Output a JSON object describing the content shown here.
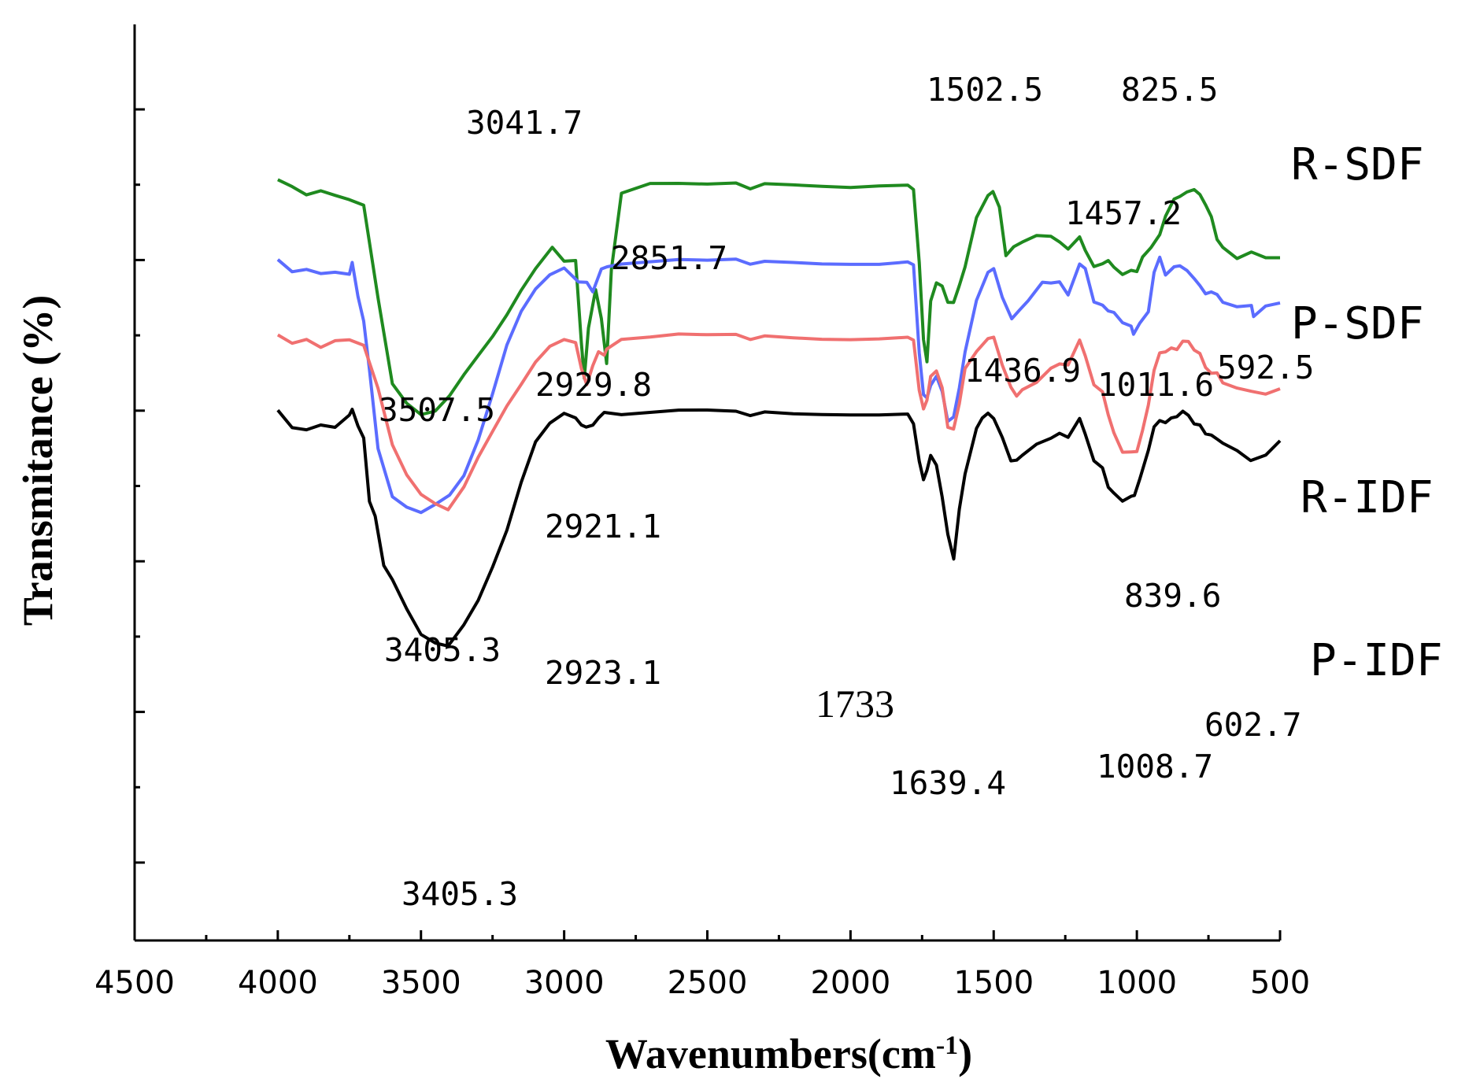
{
  "chart_data": {
    "type": "line",
    "title": "",
    "xlabel": "Wavenumbers",
    "xlabel_unit_prefix": "(cm",
    "xlabel_unit_exp": "-1",
    "xlabel_unit_suffix": ")",
    "ylabel": "Transmitance (%)",
    "xlim": [
      4500,
      500
    ],
    "x_ticks": [
      4500,
      4000,
      3500,
      3000,
      2500,
      2000,
      1500,
      1000,
      500
    ],
    "x_tick_labels": [
      "4500",
      "4000",
      "3500",
      "3000",
      "2500",
      "2000",
      "1500",
      "1000",
      "500"
    ],
    "y_ticks_unlabeled": 10,
    "ylim": [
      0,
      100
    ],
    "series": [
      {
        "name": "R-SDF",
        "color": "#1f8a1f",
        "x": [
          4000,
          3950,
          3900,
          3850,
          3800,
          3750,
          3700,
          3650,
          3600,
          3550,
          3500,
          3450,
          3400,
          3350,
          3300,
          3250,
          3200,
          3150,
          3100,
          3041.7,
          3000,
          2960,
          2940,
          2929.8,
          2915,
          2890,
          2870,
          2851.7,
          2835,
          2800,
          2700,
          2600,
          2500,
          2400,
          2350,
          2300,
          2200,
          2100,
          2000,
          1900,
          1800,
          1780,
          1760,
          1745,
          1733,
          1720,
          1700,
          1680,
          1660,
          1640,
          1620,
          1600,
          1560,
          1520,
          1502.5,
          1480,
          1457.2,
          1430,
          1400,
          1350,
          1300,
          1270,
          1240,
          1200,
          1180,
          1150,
          1120,
          1100,
          1080,
          1050,
          1020,
          1000,
          980,
          950,
          920,
          900,
          870,
          850,
          825.5,
          800,
          780,
          760,
          740,
          720,
          700,
          650,
          600,
          550,
          500
        ],
        "values": [
          90.6,
          89.8,
          88.8,
          89.4,
          88.8,
          88.2,
          87.4,
          75,
          63.5,
          60.8,
          59.2,
          59.6,
          61.6,
          64.4,
          67,
          69.6,
          72.6,
          76,
          79,
          81.4,
          80.2,
          79.4,
          69,
          64.5,
          71,
          76,
          72,
          66.6,
          79,
          89.2,
          90.3,
          90.1,
          89.9,
          90.1,
          89.4,
          90.2,
          90.3,
          90.3,
          90.2,
          90.3,
          90.2,
          89.5,
          80,
          70,
          66.6,
          74,
          77,
          76.5,
          74.8,
          74.6,
          76.2,
          79,
          86,
          88.4,
          88.8,
          86.5,
          80.8,
          81.2,
          82.5,
          83.5,
          83.5,
          82.6,
          81.4,
          83.6,
          81,
          79.7,
          79.5,
          80.5,
          79,
          78.6,
          78.4,
          78.9,
          80.5,
          82,
          83,
          86,
          87.7,
          88.5,
          89.2,
          89.3,
          88.6,
          87.9,
          85.8,
          82.5,
          81.5,
          80,
          80.9,
          80.2,
          80.3
        ]
      },
      {
        "name": "P-SDF",
        "color": "#5b6cff",
        "x": [
          4000,
          3950,
          3900,
          3850,
          3800,
          3750,
          3740,
          3720,
          3700,
          3680,
          3650,
          3600,
          3550,
          3500,
          3450,
          3400,
          3350,
          3300,
          3250,
          3200,
          3150,
          3100,
          3050,
          3000,
          2950,
          2921,
          2900,
          2870,
          2850,
          2800,
          2700,
          2600,
          2500,
          2400,
          2350,
          2300,
          2200,
          2100,
          2000,
          1900,
          1800,
          1780,
          1760,
          1745,
          1733,
          1720,
          1700,
          1680,
          1660,
          1640,
          1620,
          1600,
          1560,
          1520,
          1500,
          1470,
          1436.9,
          1410,
          1380,
          1330,
          1300,
          1270,
          1240,
          1200,
          1180,
          1150,
          1120,
          1100,
          1080,
          1050,
          1020,
          1011.6,
          990,
          960,
          940,
          920,
          900,
          870,
          850,
          825,
          800,
          780,
          760,
          740,
          720,
          700,
          650,
          600,
          592.5,
          550,
          500
        ],
        "values": [
          80,
          78.5,
          78.9,
          78.4,
          78.6,
          78.3,
          79.5,
          75,
          72,
          66,
          55,
          48.5,
          47,
          46.2,
          47.2,
          48.4,
          51,
          55.8,
          62,
          68.6,
          73.2,
          76.3,
          78.3,
          79.3,
          77.5,
          76.8,
          76.2,
          78.6,
          79.5,
          79.8,
          79.9,
          80,
          79.8,
          80,
          79.4,
          79.9,
          80,
          80,
          80,
          79.9,
          80,
          79.5,
          68,
          62.7,
          61.8,
          62.8,
          64.6,
          62.5,
          59,
          59.4,
          62.6,
          67.7,
          75,
          78.2,
          78.8,
          75,
          72.3,
          73.4,
          74,
          76.5,
          77.3,
          77.3,
          75.3,
          80,
          78.6,
          75,
          74,
          73.8,
          73,
          72.2,
          71,
          70.4,
          71.2,
          73.4,
          78,
          80,
          78.2,
          78.7,
          79.3,
          78.6,
          77.5,
          76.5,
          76.1,
          75.8,
          75.2,
          74.2,
          73.6,
          73.8,
          72.8,
          73.8,
          74.3
        ]
      },
      {
        "name": "R-IDF",
        "color": "#f07070",
        "x": [
          4000,
          3950,
          3900,
          3850,
          3800,
          3750,
          3700,
          3650,
          3600,
          3550,
          3500,
          3450,
          3405.3,
          3350,
          3300,
          3250,
          3200,
          3150,
          3100,
          3050,
          3000,
          2960,
          2940,
          2921.1,
          2900,
          2880,
          2860,
          2851.7,
          2800,
          2700,
          2600,
          2500,
          2400,
          2350,
          2300,
          2200,
          2100,
          2000,
          1900,
          1800,
          1780,
          1760,
          1745,
          1733,
          1720,
          1700,
          1680,
          1660,
          1640,
          1620,
          1600,
          1560,
          1520,
          1500,
          1470,
          1440,
          1420,
          1400,
          1350,
          1300,
          1270,
          1240,
          1200,
          1180,
          1150,
          1120,
          1100,
          1080,
          1050,
          1020,
          1000,
          980,
          960,
          940,
          920,
          900,
          880,
          860,
          839.6,
          820,
          800,
          780,
          760,
          740,
          720,
          700,
          650,
          600,
          550,
          500
        ],
        "values": [
          70,
          69,
          69.6,
          68.6,
          69.5,
          69.6,
          68.8,
          63,
          55.4,
          51.3,
          48.6,
          47.3,
          46.8,
          49.5,
          53.5,
          57,
          60.5,
          63.5,
          66.6,
          68.8,
          69.8,
          68.5,
          65.6,
          63.2,
          66.4,
          68.1,
          67,
          68.5,
          69.8,
          69.9,
          70.1,
          69.9,
          70,
          69.4,
          70,
          70,
          70,
          70,
          70,
          70,
          69.5,
          63,
          60.8,
          61.5,
          64,
          65.3,
          63,
          58.2,
          57.8,
          60.5,
          65.5,
          68.2,
          69.4,
          69.7,
          66,
          63.5,
          62,
          62.9,
          64,
          66,
          66.4,
          66,
          69.9,
          67,
          64,
          62.5,
          60,
          57,
          55,
          54.3,
          55,
          57.5,
          61,
          65,
          67.3,
          68,
          68.4,
          68.6,
          69.1,
          68.8,
          68,
          67.5,
          66.3,
          65,
          64.8,
          63.5,
          62.8,
          62.4,
          62.1,
          62.9
        ]
      },
      {
        "name": "P-IDF",
        "color": "#000000",
        "x": [
          4000,
          3950,
          3900,
          3850,
          3800,
          3750,
          3740,
          3720,
          3700,
          3680,
          3660,
          3630,
          3600,
          3550,
          3500,
          3450,
          3405.3,
          3350,
          3300,
          3250,
          3200,
          3150,
          3100,
          3050,
          3000,
          2960,
          2940,
          2923.1,
          2900,
          2880,
          2860,
          2800,
          2700,
          2600,
          2500,
          2400,
          2350,
          2300,
          2200,
          2100,
          2000,
          1900,
          1800,
          1780,
          1760,
          1745,
          1733,
          1720,
          1700,
          1680,
          1660,
          1639.4,
          1620,
          1600,
          1560,
          1540,
          1520,
          1500,
          1470,
          1440,
          1420,
          1400,
          1350,
          1300,
          1270,
          1240,
          1200,
          1180,
          1150,
          1120,
          1100,
          1080,
          1050,
          1020,
          1008.7,
          990,
          960,
          940,
          920,
          900,
          880,
          860,
          839.6,
          820,
          800,
          780,
          760,
          740,
          720,
          700,
          650,
          602.7,
          550,
          500
        ],
        "values": [
          60,
          57.8,
          57.6,
          58.3,
          58,
          59.6,
          60,
          57.8,
          56.5,
          48.5,
          45.8,
          40,
          37.5,
          33.5,
          30,
          28.8,
          28.7,
          31.2,
          34.5,
          39,
          44,
          50.5,
          56,
          58.6,
          60,
          58.5,
          58.1,
          57.8,
          58.5,
          59.3,
          59.4,
          59.8,
          59.9,
          60,
          59.9,
          59.8,
          59.3,
          59.9,
          59.9,
          60,
          60,
          59.9,
          59.8,
          58.4,
          53.6,
          51.4,
          52.2,
          53.5,
          52.8,
          48.5,
          44,
          40.6,
          46.5,
          51.5,
          58,
          59.4,
          59.5,
          58.9,
          56.4,
          53.7,
          53.5,
          54.2,
          55.8,
          56.7,
          57.2,
          56.4,
          59.5,
          56.6,
          53.9,
          52.4,
          50.4,
          49,
          48.5,
          48.4,
          48.4,
          50.5,
          55,
          57.5,
          58.3,
          58.6,
          59.1,
          59.7,
          59.8,
          59,
          58.2,
          58,
          57.5,
          56.8,
          56,
          55.5,
          54.5,
          53.2,
          54,
          56
        ]
      }
    ],
    "annotations": [
      {
        "text": "3041.7",
        "series": "R-SDF"
      },
      {
        "text": "1502.5",
        "series": "R-SDF"
      },
      {
        "text": "825.5",
        "series": "R-SDF"
      },
      {
        "text": "1457.2",
        "series": "R-SDF"
      },
      {
        "text": "2851.7",
        "series": "R-SDF"
      },
      {
        "text": "3507.5",
        "series": "P-SDF"
      },
      {
        "text": "2929.8",
        "series": "P-SDF"
      },
      {
        "text": "1436.9",
        "series": "P-SDF"
      },
      {
        "text": "1011.6",
        "series": "P-SDF"
      },
      {
        "text": "592.5",
        "series": "P-SDF"
      },
      {
        "text": "2921.1",
        "series": "R-IDF"
      },
      {
        "text": "3405.3",
        "series": "R-IDF"
      },
      {
        "text": "839.6",
        "series": "R-IDF"
      },
      {
        "text": "2923.1",
        "series": "P-IDF"
      },
      {
        "text": "1733",
        "series": "P-IDF"
      },
      {
        "text": "602.7",
        "series": "P-IDF"
      },
      {
        "text": "1639.4",
        "series": "P-IDF"
      },
      {
        "text": "1008.7",
        "series": "P-IDF"
      },
      {
        "text": "3405.3",
        "series": "P-IDF"
      }
    ]
  }
}
